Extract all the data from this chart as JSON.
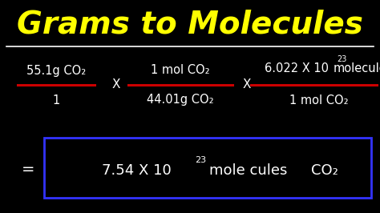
{
  "title": "Grams to Molecules",
  "title_color": "#FFFF00",
  "title_fontsize": 28,
  "background_color": "#000000",
  "red_line_color": "#CC0000",
  "white_line_color": "#FFFFFF",
  "text_color": "#FFFFFF",
  "box_color": "#3333FF",
  "frac1_num": "55.1g CO₂",
  "frac1_den": "1",
  "frac2_num": "1 mol CO₂",
  "frac2_den": "44.01g CO₂",
  "frac3_num_base": "6.022 X 10",
  "frac3_num_exp": "23",
  "frac3_num_suffix": "molecules",
  "frac3_den": "1 mol CO₂",
  "eq_sign": "=",
  "res_base": "7.54 X 10",
  "res_exp": "23",
  "res_mid": "mole cules",
  "res_co2": "CO₂",
  "multiply_x": "X"
}
